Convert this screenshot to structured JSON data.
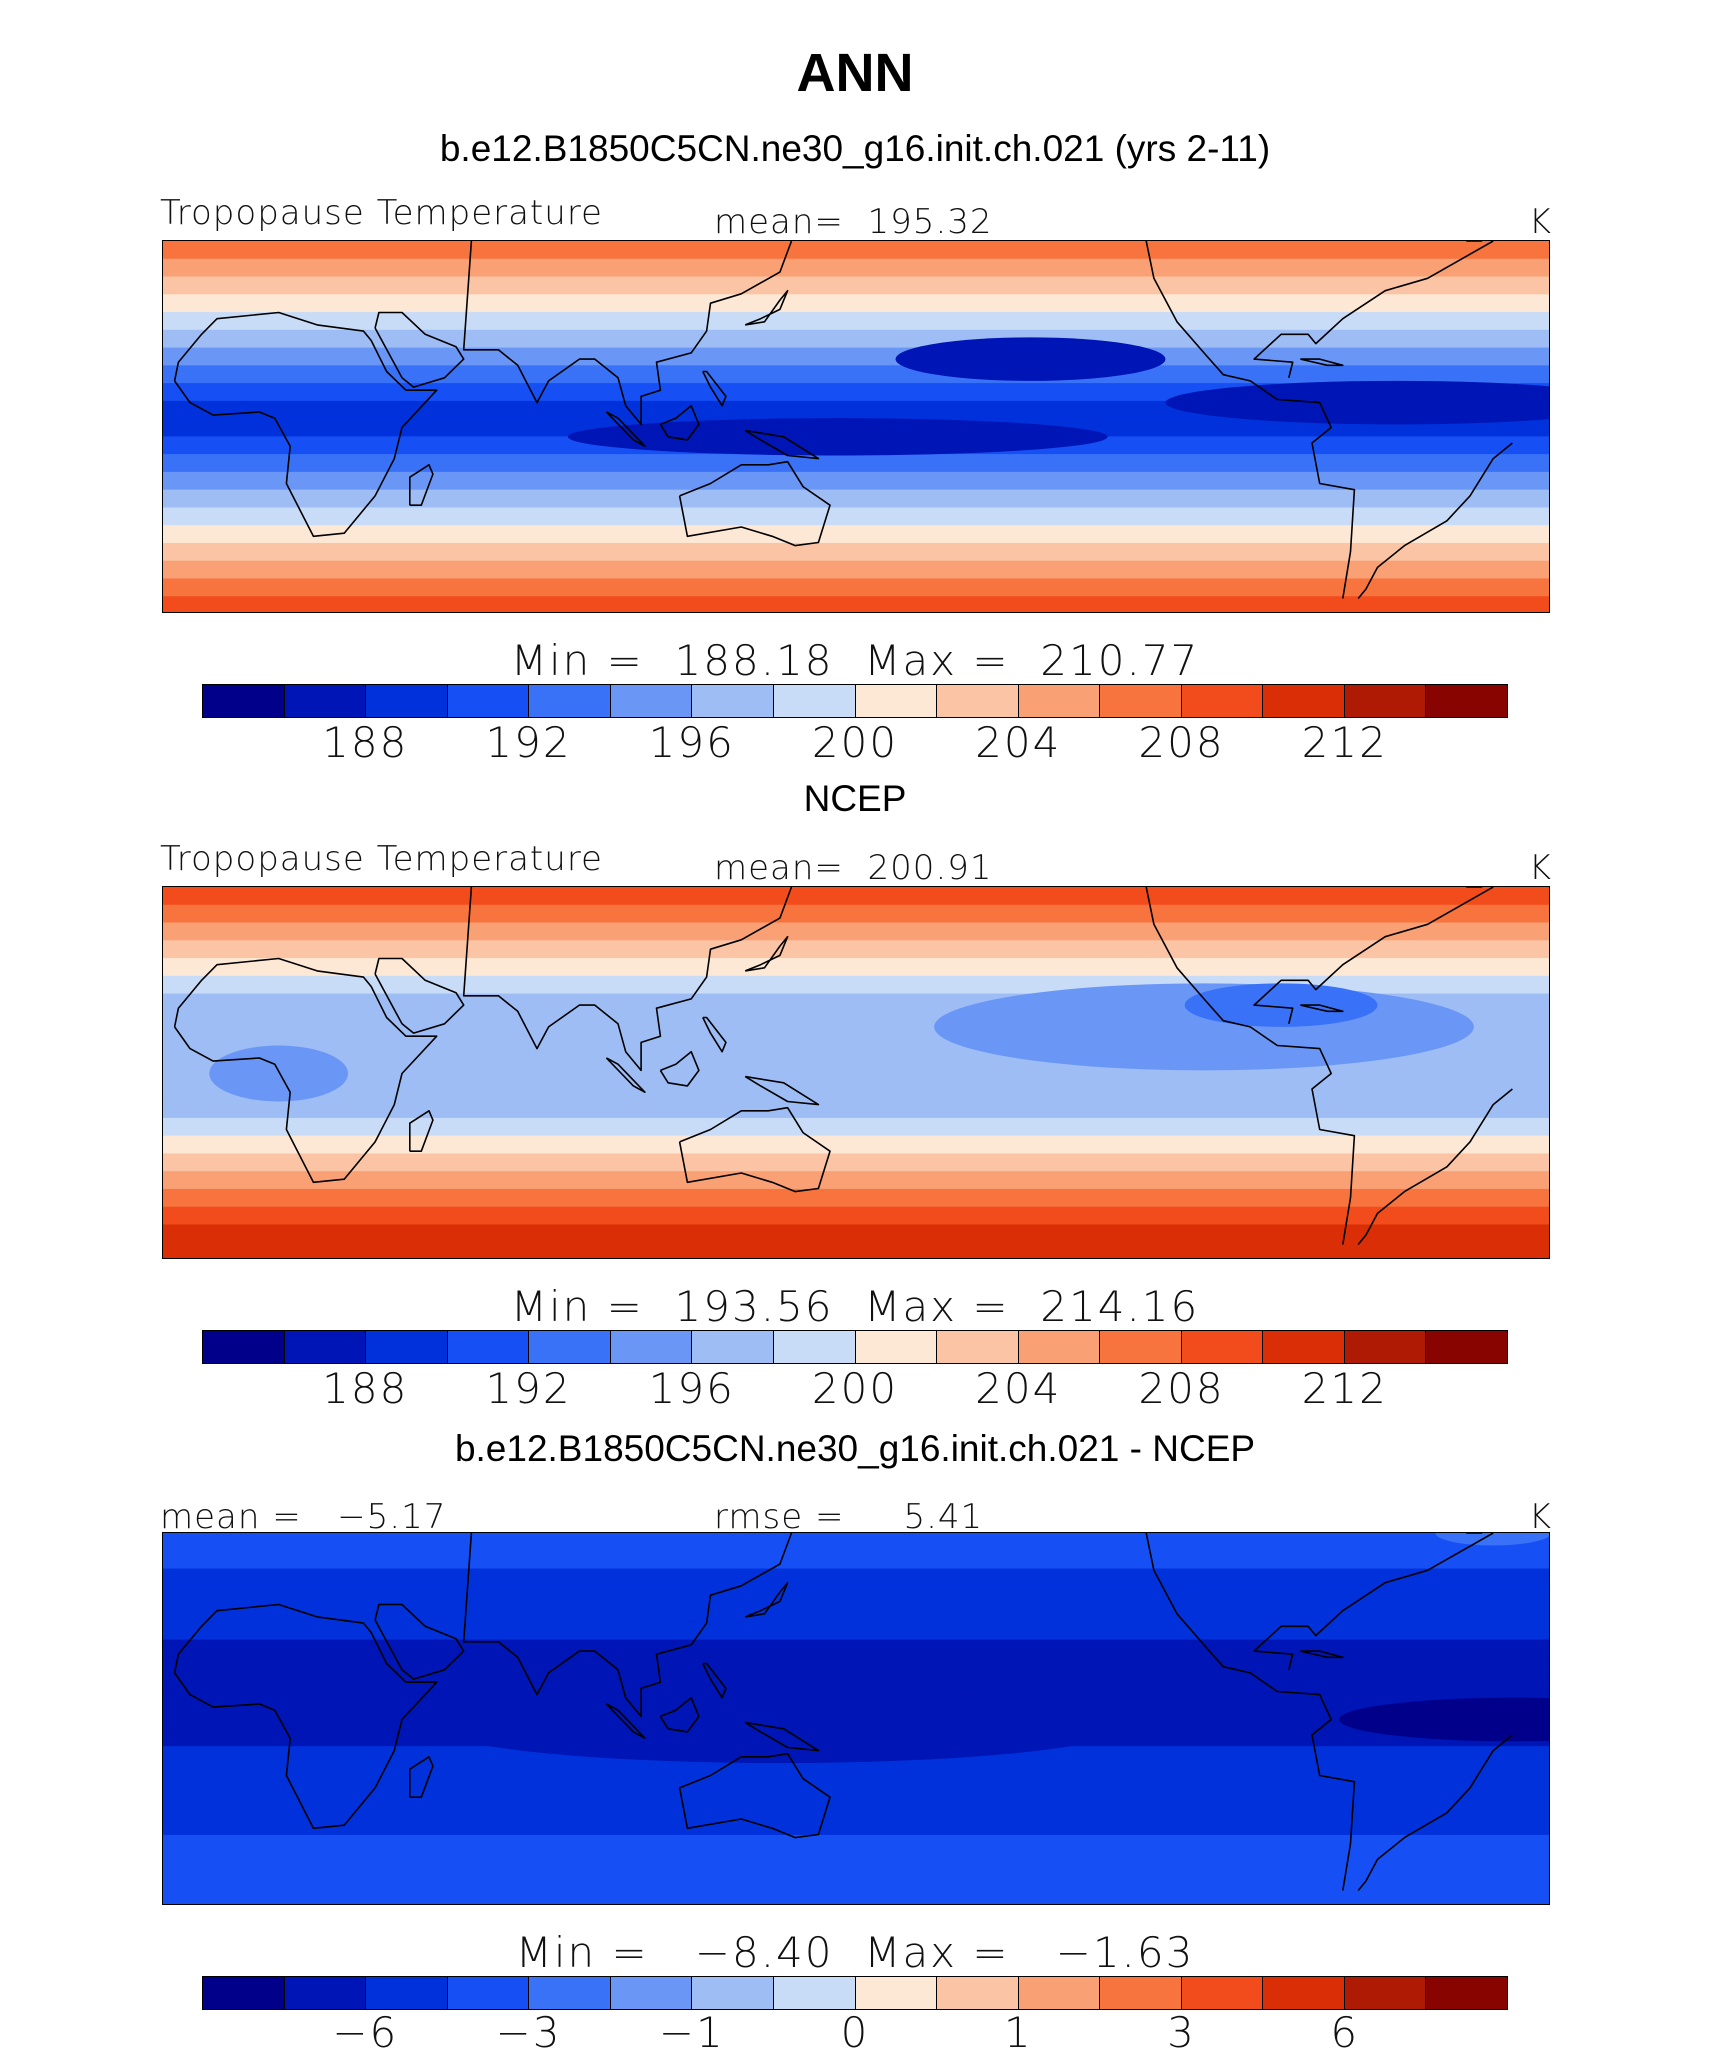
{
  "title": "ANN",
  "colors": [
    "#00008b",
    "#0015b5",
    "#0031db",
    "#1650f5",
    "#3a72f7",
    "#6a97f5",
    "#9ebdf5",
    "#c9dcf7",
    "#fde8d5",
    "#fbc5a5",
    "#f9a074",
    "#f7743f",
    "#f24c1c",
    "#d92e06",
    "#ae1a04",
    "#870400"
  ],
  "coastline_color": "#000000",
  "chart_data": [
    {
      "type": "heatmap",
      "subtitle": "b.e12.B1850C5CN.ne30_g16.init.ch.021 (yrs 2-11)",
      "variable": "Tropopause Temperature",
      "mean_label": "mean=",
      "mean": "195.32",
      "units": "K",
      "min_label": "Min  =",
      "min": "188.18",
      "max_label": "Max  =",
      "max": "210.77",
      "colorbar_ticks": [
        "188",
        "192",
        "196",
        "200",
        "204",
        "208",
        "212"
      ],
      "tick_positions": [
        2,
        4,
        6,
        8,
        10,
        12,
        14
      ],
      "band_levels": [
        11,
        10,
        9,
        8,
        7,
        6,
        5,
        4,
        3,
        2,
        2,
        3,
        4,
        5,
        6,
        7,
        8,
        9,
        10,
        11,
        12
      ],
      "features": [
        {
          "lon": 300,
          "lat": 8,
          "rx": 60,
          "ry": 7,
          "level": 1
        },
        {
          "lon": 155,
          "lat": -3,
          "rx": 70,
          "ry": 6,
          "level": 1
        },
        {
          "lon": 205,
          "lat": 22,
          "rx": 35,
          "ry": 7,
          "level": 1
        }
      ]
    },
    {
      "type": "heatmap",
      "subtitle": "NCEP",
      "variable": "Tropopause Temperature",
      "mean_label": "mean=",
      "mean": "200.91",
      "units": "K",
      "min_label": "Min  =",
      "min": "193.56",
      "max_label": "Max  =",
      "max": "214.16",
      "colorbar_ticks": [
        "188",
        "192",
        "196",
        "200",
        "204",
        "208",
        "212"
      ],
      "tick_positions": [
        2,
        4,
        6,
        8,
        10,
        12,
        14
      ],
      "band_levels": [
        12,
        11,
        10,
        9,
        8,
        7,
        6,
        6,
        6,
        6,
        6,
        6,
        6,
        7,
        8,
        9,
        10,
        11,
        12,
        13,
        13
      ],
      "features": [
        {
          "lon": 250,
          "lat": 15,
          "rx": 70,
          "ry": 14,
          "level": 5
        },
        {
          "lon": 10,
          "lat": 0,
          "rx": 18,
          "ry": 9,
          "level": 5
        },
        {
          "lon": 270,
          "lat": 22,
          "rx": 25,
          "ry": 7,
          "level": 4
        }
      ]
    },
    {
      "type": "heatmap",
      "subtitle": "b.e12.B1850C5CN.ne30_g16.init.ch.021 - NCEP",
      "mean_label": "mean =",
      "mean": "−5.17",
      "rmse_label": "rmse =",
      "rmse": "5.41",
      "units": "K",
      "min_label": "Min  =",
      "min": "−8.40",
      "max_label": "Max  =",
      "max": "−1.63",
      "colorbar_ticks": [
        "−6",
        "−3",
        "−1",
        "0",
        "1",
        "3",
        "6"
      ],
      "tick_positions": [
        2,
        4,
        6,
        8,
        10,
        12,
        14
      ],
      "band_levels": [
        3,
        3,
        2,
        2,
        2,
        2,
        1,
        1,
        1,
        1,
        1,
        1,
        2,
        2,
        2,
        2,
        2,
        3,
        3,
        3,
        3
      ],
      "features": [
        {
          "lon": 140,
          "lat": -2,
          "rx": 90,
          "ry": 12,
          "level": 1
        },
        {
          "lon": 330,
          "lat": 0,
          "rx": 45,
          "ry": 7,
          "level": 0
        },
        {
          "lon": 325,
          "lat": 60,
          "rx": 15,
          "ry": 4,
          "level": 4
        }
      ]
    }
  ]
}
